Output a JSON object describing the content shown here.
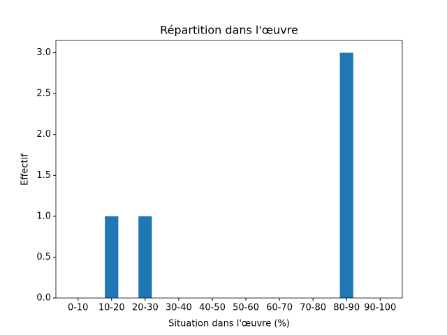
{
  "chart_data": {
    "type": "bar",
    "title": "Répartition dans l'œuvre",
    "x_label": "Situation dans l'œuvre (%)",
    "y_label": "Effectif",
    "categories": [
      "0-10",
      "10-20",
      "20-30",
      "30-40",
      "40-50",
      "50-60",
      "60-70",
      "70-80",
      "80-90",
      "90-100"
    ],
    "values": [
      0,
      1,
      1,
      0,
      0,
      0,
      0,
      0,
      3,
      0
    ],
    "color": "#1f77b4",
    "ylim": [
      0,
      3.15
    ],
    "yticks": [
      {
        "value": 0,
        "label": "0.0"
      },
      {
        "value": 0.5,
        "label": "0.5"
      },
      {
        "value": 1,
        "label": "1.0"
      },
      {
        "value": 1.5,
        "label": "1.5"
      },
      {
        "value": 2,
        "label": "2.0"
      },
      {
        "value": 2.5,
        "label": "2.5"
      },
      {
        "value": 3,
        "label": "3.0"
      }
    ],
    "grid": false
  }
}
